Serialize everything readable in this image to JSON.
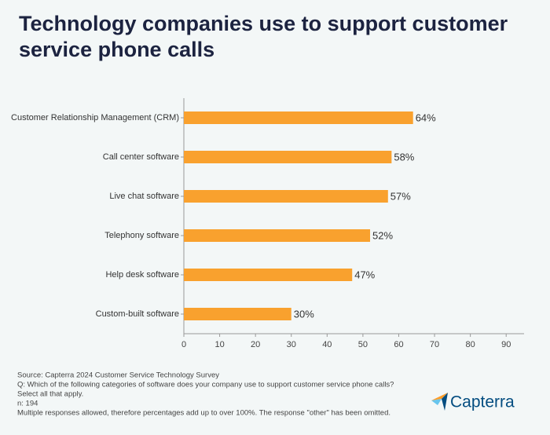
{
  "chart_data": {
    "type": "hbar",
    "title": "Technology companies use to support customer service phone calls",
    "categories": [
      "Customer Relationship Management (CRM)",
      "Call center software",
      "Live chat software",
      "Telephony software",
      "Help desk software",
      "Custom-built software"
    ],
    "values": [
      64,
      58,
      57,
      52,
      47,
      30
    ],
    "value_labels": [
      "64%",
      "58%",
      "57%",
      "52%",
      "47%",
      "30%"
    ],
    "color": "#f9a12e",
    "xlim": [
      0,
      95
    ],
    "xticks": [
      0,
      10,
      20,
      30,
      40,
      50,
      60,
      70,
      80,
      90
    ],
    "grid": false
  },
  "footer": {
    "notes": [
      "Source: Capterra 2024 Customer Service Technology Survey",
      "Q:  Which of the following categories of software does your company use to support customer service phone calls?",
      "Select all that apply.",
      "n: 194",
      "Multiple responses allowed, therefore percentages add up to over 100%. The response \"other\" has been omitted."
    ],
    "logo": "Capterra"
  }
}
